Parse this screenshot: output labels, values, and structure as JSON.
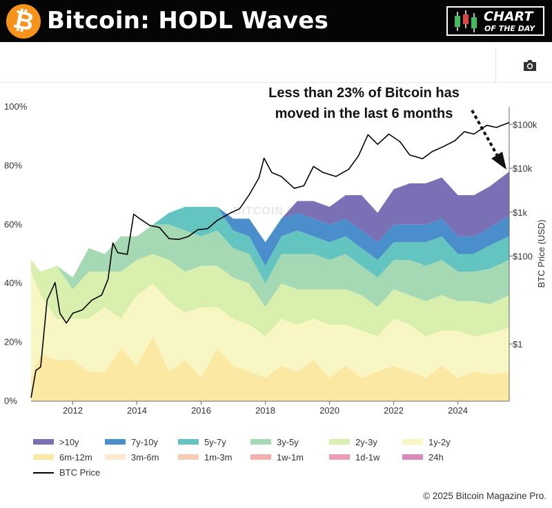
{
  "header": {
    "logo_glyph": "₿",
    "title": "Bitcoin: HODL Waves",
    "badge_line1": "CHART",
    "badge_line2": "OF THE DAY"
  },
  "toolbar": {
    "camera_icon": "camera-icon"
  },
  "annotation": {
    "line1": "Less than 23% of Bitcoin has",
    "line2": "moved in the last 6 months"
  },
  "watermark": "BITCOIN MAGAZINE",
  "copyright": "© 2025 Bitcoin Magazine Pro.",
  "chart_data": {
    "type": "area",
    "x": [
      2010.7,
      2011.0,
      2011.5,
      2012.0,
      2012.5,
      2013.0,
      2013.5,
      2014.0,
      2014.5,
      2015.0,
      2015.5,
      2016.0,
      2016.5,
      2017.0,
      2017.5,
      2018.0,
      2018.5,
      2019.0,
      2019.5,
      2020.0,
      2020.5,
      2021.0,
      2021.5,
      2022.0,
      2022.5,
      2023.0,
      2023.5,
      2024.0,
      2024.5,
      2025.0,
      2025.6
    ],
    "xlim": [
      2010.7,
      2025.6
    ],
    "ylim": [
      0,
      100
    ],
    "yticks": [
      "0%",
      "20%",
      "40%",
      "60%",
      "80%",
      "100%"
    ],
    "xticks": [
      "2012",
      "2014",
      "2016",
      "2018",
      "2020",
      "2022",
      "2024"
    ],
    "y2label": "BTC Price (USD)",
    "y2ticks": [
      {
        "label": "$1",
        "value": 1
      },
      {
        "label": "$100",
        "value": 100
      },
      {
        "label": "$1k",
        "value": 1000
      },
      {
        "label": "$10k",
        "value": 10000
      },
      {
        "label": "$100k",
        "value": 100000
      }
    ],
    "y2lim": [
      0.05,
      250000
    ],
    "series": [
      {
        "name": "6m-12m",
        "color": "#fbe9a3",
        "values": [
          8,
          16,
          14,
          14,
          10,
          10,
          18,
          12,
          22,
          10,
          14,
          8,
          18,
          12,
          10,
          8,
          12,
          10,
          14,
          8,
          12,
          8,
          10,
          12,
          10,
          8,
          12,
          8,
          10,
          9,
          10
        ]
      },
      {
        "name": "1y-2y",
        "color": "#f8f6c2",
        "values": [
          36,
          20,
          14,
          14,
          18,
          22,
          10,
          24,
          18,
          24,
          16,
          24,
          14,
          16,
          16,
          14,
          16,
          16,
          14,
          18,
          14,
          16,
          12,
          16,
          16,
          14,
          12,
          16,
          12,
          14,
          15
        ]
      },
      {
        "name": "2y-3y",
        "color": "#d8efae",
        "values": [
          4,
          8,
          18,
          10,
          16,
          12,
          16,
          12,
          10,
          14,
          14,
          14,
          14,
          14,
          14,
          10,
          12,
          12,
          10,
          12,
          12,
          12,
          10,
          10,
          10,
          12,
          12,
          10,
          12,
          10,
          11
        ]
      },
      {
        "name": "3y-5y",
        "color": "#a4d9b4",
        "values": [
          0,
          0,
          0,
          4,
          8,
          6,
          12,
          8,
          10,
          12,
          14,
          10,
          12,
          10,
          10,
          8,
          10,
          12,
          12,
          10,
          12,
          10,
          10,
          10,
          12,
          12,
          12,
          10,
          10,
          12,
          12
        ]
      },
      {
        "name": "5y-7y",
        "color": "#64c4c0",
        "values": [
          0,
          0,
          0,
          0,
          0,
          0,
          0,
          0,
          0,
          4,
          8,
          10,
          8,
          6,
          6,
          6,
          6,
          8,
          6,
          6,
          6,
          6,
          6,
          6,
          6,
          8,
          8,
          6,
          6,
          8,
          8
        ]
      },
      {
        "name": "7y-10y",
        "color": "#4a8fcb",
        "values": [
          0,
          0,
          0,
          0,
          0,
          0,
          0,
          0,
          0,
          0,
          0,
          0,
          0,
          4,
          6,
          8,
          6,
          6,
          6,
          6,
          6,
          6,
          6,
          6,
          6,
          6,
          6,
          6,
          6,
          6,
          7
        ]
      },
      {
        "name": ">10y",
        "color": "#7a70b6",
        "values": [
          0,
          0,
          0,
          0,
          0,
          0,
          0,
          0,
          0,
          0,
          0,
          0,
          0,
          0,
          0,
          0,
          0,
          4,
          6,
          6,
          8,
          12,
          10,
          12,
          14,
          14,
          14,
          14,
          14,
          14,
          15
        ]
      }
    ],
    "legend": [
      {
        "name": ">10y",
        "color": "#7a70b6"
      },
      {
        "name": "7y-10y",
        "color": "#4a8fcb"
      },
      {
        "name": "5y-7y",
        "color": "#64c4c0"
      },
      {
        "name": "3y-5y",
        "color": "#a4d9b4"
      },
      {
        "name": "2y-3y",
        "color": "#d8efae"
      },
      {
        "name": "1y-2y",
        "color": "#f8f6c2"
      },
      {
        "name": "6m-12m",
        "color": "#fbe9a3"
      },
      {
        "name": "3m-6m",
        "color": "#fde7cf"
      },
      {
        "name": "1m-3m",
        "color": "#f8cdb8"
      },
      {
        "name": "1w-1m",
        "color": "#f3aeb0"
      },
      {
        "name": "1d-1w",
        "color": "#ec9cb6"
      },
      {
        "name": "24h",
        "color": "#d98ab8"
      },
      {
        "name": "BTC Price",
        "color": "#000000",
        "line": true
      }
    ],
    "price": {
      "name": "BTC Price",
      "x": [
        2010.7,
        2010.85,
        2011.0,
        2011.2,
        2011.45,
        2011.6,
        2011.8,
        2012.0,
        2012.3,
        2012.6,
        2012.9,
        2013.1,
        2013.25,
        2013.4,
        2013.7,
        2013.9,
        2014.1,
        2014.4,
        2014.7,
        2015.0,
        2015.3,
        2015.6,
        2015.9,
        2016.2,
        2016.5,
        2016.9,
        2017.2,
        2017.5,
        2017.8,
        2017.96,
        2018.2,
        2018.5,
        2018.9,
        2019.2,
        2019.5,
        2019.8,
        2020.2,
        2020.6,
        2020.9,
        2021.2,
        2021.5,
        2021.85,
        2022.2,
        2022.5,
        2022.9,
        2023.2,
        2023.5,
        2023.9,
        2024.2,
        2024.5,
        2024.9,
        2025.2,
        2025.6
      ],
      "values": [
        0.06,
        0.25,
        0.3,
        10,
        25,
        5,
        3,
        5,
        6,
        10,
        13,
        30,
        200,
        120,
        110,
        900,
        700,
        500,
        450,
        250,
        240,
        280,
        400,
        420,
        650,
        950,
        1200,
        2500,
        6000,
        17000,
        8000,
        6500,
        3500,
        4000,
        11000,
        8000,
        6500,
        9500,
        19000,
        58000,
        35000,
        60000,
        40000,
        20000,
        16500,
        24000,
        30000,
        42000,
        68000,
        60000,
        95000,
        85000,
        110000
      ]
    }
  }
}
